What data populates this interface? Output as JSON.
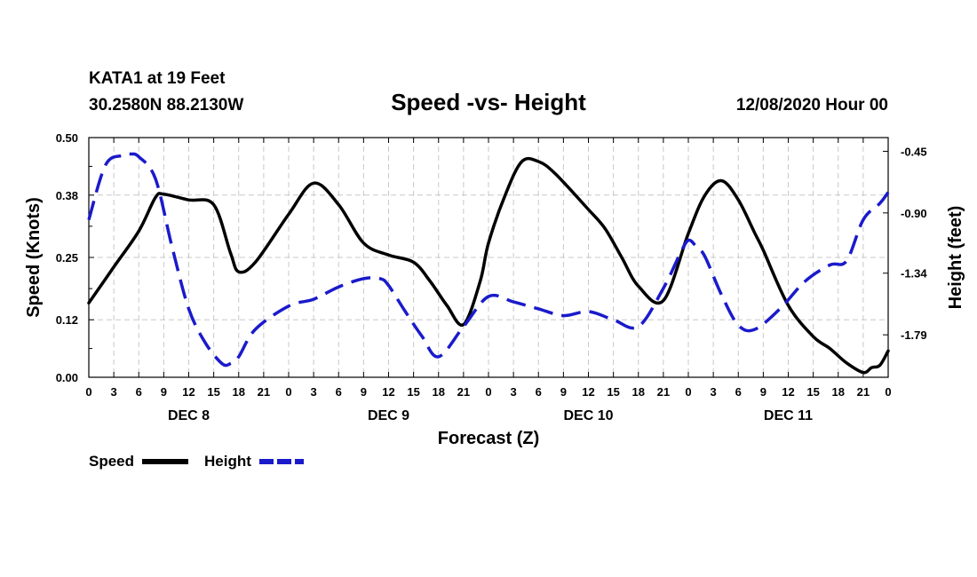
{
  "header": {
    "station": "KATA1 at 19 Feet",
    "coords": "30.2580N 88.2130W",
    "title": "Speed -vs- Height",
    "date": "12/08/2020 Hour 00"
  },
  "chart_data": {
    "type": "line",
    "title": "Speed -vs- Height",
    "xlabel": "Forecast (Z)",
    "ylabel_left": "Speed (Knots)",
    "ylabel_right": "Height (feet)",
    "x_unit": "hours from 12/08/2020 00Z",
    "xlim": [
      0,
      96
    ],
    "ylim_left": [
      0.0,
      0.5
    ],
    "ylim_right": [
      -2.1,
      -0.35
    ],
    "left_ticks": [
      0.0,
      0.12,
      0.25,
      0.38,
      0.5
    ],
    "left_tick_labels": [
      "0.00",
      "0.12",
      "0.25",
      "0.38",
      "0.50"
    ],
    "right_ticks": [
      -0.45,
      -0.9,
      -1.34,
      -1.79
    ],
    "right_tick_labels": [
      "-0.45",
      "-0.90",
      "-1.34",
      "-1.79"
    ],
    "x_tick_hours": [
      0,
      3,
      6,
      9,
      12,
      15,
      18,
      21,
      24,
      27,
      30,
      33,
      36,
      39,
      42,
      45,
      48,
      51,
      54,
      57,
      60,
      63,
      66,
      69,
      72,
      75,
      78,
      81,
      84,
      87,
      90,
      93,
      96
    ],
    "x_tick_labels": [
      "0",
      "3",
      "6",
      "9",
      "12",
      "15",
      "18",
      "21",
      "0",
      "3",
      "6",
      "9",
      "12",
      "15",
      "18",
      "21",
      "0",
      "3",
      "6",
      "9",
      "12",
      "15",
      "18",
      "21",
      "0",
      "3",
      "6",
      "9",
      "12",
      "15",
      "18",
      "21",
      "0"
    ],
    "day_labels": [
      {
        "hour": 12,
        "label": "DEC 8"
      },
      {
        "hour": 36,
        "label": "DEC 9"
      },
      {
        "hour": 60,
        "label": "DEC 10"
      },
      {
        "hour": 84,
        "label": "DEC 11"
      }
    ],
    "grid": true,
    "series": [
      {
        "name": "Speed",
        "axis": "left",
        "color": "#000000",
        "style": "solid",
        "x": [
          0,
          3,
          6,
          8,
          9,
          12,
          15,
          17,
          18,
          20,
          24,
          27,
          30,
          33,
          36,
          39,
          41,
          43,
          45,
          47,
          48,
          50,
          52,
          54,
          56,
          60,
          62,
          64,
          66,
          69,
          72,
          74,
          76,
          78,
          80,
          81,
          84,
          87,
          89,
          91,
          93,
          94,
          95,
          96
        ],
        "values": [
          0.155,
          0.23,
          0.305,
          0.375,
          0.382,
          0.37,
          0.36,
          0.26,
          0.22,
          0.24,
          0.34,
          0.405,
          0.36,
          0.28,
          0.255,
          0.24,
          0.2,
          0.15,
          0.11,
          0.2,
          0.28,
          0.38,
          0.45,
          0.45,
          0.425,
          0.35,
          0.31,
          0.25,
          0.19,
          0.16,
          0.3,
          0.38,
          0.41,
          0.37,
          0.3,
          0.265,
          0.15,
          0.085,
          0.06,
          0.03,
          0.01,
          0.02,
          0.025,
          0.055
        ]
      },
      {
        "name": "Height",
        "axis": "right",
        "color": "#1a1acc",
        "style": "dashed",
        "x": [
          0,
          2,
          4,
          5,
          6,
          8,
          10,
          12,
          14,
          16,
          17,
          18,
          20,
          24,
          27,
          30,
          33,
          35,
          36,
          38,
          40,
          42,
          45,
          48,
          51,
          54,
          57,
          60,
          63,
          66,
          69,
          71,
          72,
          73,
          74,
          76,
          78,
          80,
          83,
          86,
          89,
          91,
          93,
          95,
          96
        ],
        "values": [
          -0.95,
          -0.55,
          -0.48,
          -0.47,
          -0.49,
          -0.65,
          -1.15,
          -1.6,
          -1.85,
          -2.0,
          -2.0,
          -1.95,
          -1.75,
          -1.58,
          -1.53,
          -1.44,
          -1.38,
          -1.38,
          -1.43,
          -1.62,
          -1.8,
          -1.95,
          -1.73,
          -1.51,
          -1.55,
          -1.6,
          -1.65,
          -1.62,
          -1.68,
          -1.73,
          -1.45,
          -1.2,
          -1.1,
          -1.15,
          -1.22,
          -1.5,
          -1.72,
          -1.75,
          -1.6,
          -1.4,
          -1.28,
          -1.25,
          -0.95,
          -0.83,
          -0.75
        ]
      }
    ],
    "legend": [
      {
        "label": "Speed",
        "color": "#000000",
        "style": "solid"
      },
      {
        "label": "Height",
        "color": "#1a1acc",
        "style": "dashed"
      }
    ],
    "legend_position": "bottom-left"
  }
}
